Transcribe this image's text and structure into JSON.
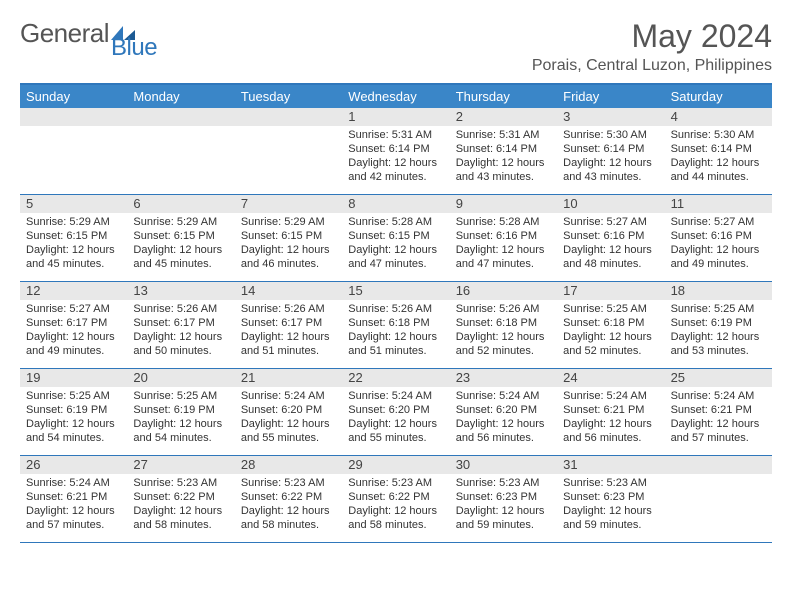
{
  "brand": {
    "name1": "General",
    "name2": "Blue"
  },
  "title": "May 2024",
  "location": "Porais, Central Luzon, Philippines",
  "accent_color": "#3a86c8",
  "border_color": "#2f77bb",
  "daynum_bg": "#e8e8e8",
  "weekdays": [
    "Sunday",
    "Monday",
    "Tuesday",
    "Wednesday",
    "Thursday",
    "Friday",
    "Saturday"
  ],
  "weeks": [
    [
      {
        "n": "",
        "sr": "",
        "ss": "",
        "dl": ""
      },
      {
        "n": "",
        "sr": "",
        "ss": "",
        "dl": ""
      },
      {
        "n": "",
        "sr": "",
        "ss": "",
        "dl": ""
      },
      {
        "n": "1",
        "sr": "Sunrise: 5:31 AM",
        "ss": "Sunset: 6:14 PM",
        "dl": "Daylight: 12 hours and 42 minutes."
      },
      {
        "n": "2",
        "sr": "Sunrise: 5:31 AM",
        "ss": "Sunset: 6:14 PM",
        "dl": "Daylight: 12 hours and 43 minutes."
      },
      {
        "n": "3",
        "sr": "Sunrise: 5:30 AM",
        "ss": "Sunset: 6:14 PM",
        "dl": "Daylight: 12 hours and 43 minutes."
      },
      {
        "n": "4",
        "sr": "Sunrise: 5:30 AM",
        "ss": "Sunset: 6:14 PM",
        "dl": "Daylight: 12 hours and 44 minutes."
      }
    ],
    [
      {
        "n": "5",
        "sr": "Sunrise: 5:29 AM",
        "ss": "Sunset: 6:15 PM",
        "dl": "Daylight: 12 hours and 45 minutes."
      },
      {
        "n": "6",
        "sr": "Sunrise: 5:29 AM",
        "ss": "Sunset: 6:15 PM",
        "dl": "Daylight: 12 hours and 45 minutes."
      },
      {
        "n": "7",
        "sr": "Sunrise: 5:29 AM",
        "ss": "Sunset: 6:15 PM",
        "dl": "Daylight: 12 hours and 46 minutes."
      },
      {
        "n": "8",
        "sr": "Sunrise: 5:28 AM",
        "ss": "Sunset: 6:15 PM",
        "dl": "Daylight: 12 hours and 47 minutes."
      },
      {
        "n": "9",
        "sr": "Sunrise: 5:28 AM",
        "ss": "Sunset: 6:16 PM",
        "dl": "Daylight: 12 hours and 47 minutes."
      },
      {
        "n": "10",
        "sr": "Sunrise: 5:27 AM",
        "ss": "Sunset: 6:16 PM",
        "dl": "Daylight: 12 hours and 48 minutes."
      },
      {
        "n": "11",
        "sr": "Sunrise: 5:27 AM",
        "ss": "Sunset: 6:16 PM",
        "dl": "Daylight: 12 hours and 49 minutes."
      }
    ],
    [
      {
        "n": "12",
        "sr": "Sunrise: 5:27 AM",
        "ss": "Sunset: 6:17 PM",
        "dl": "Daylight: 12 hours and 49 minutes."
      },
      {
        "n": "13",
        "sr": "Sunrise: 5:26 AM",
        "ss": "Sunset: 6:17 PM",
        "dl": "Daylight: 12 hours and 50 minutes."
      },
      {
        "n": "14",
        "sr": "Sunrise: 5:26 AM",
        "ss": "Sunset: 6:17 PM",
        "dl": "Daylight: 12 hours and 51 minutes."
      },
      {
        "n": "15",
        "sr": "Sunrise: 5:26 AM",
        "ss": "Sunset: 6:18 PM",
        "dl": "Daylight: 12 hours and 51 minutes."
      },
      {
        "n": "16",
        "sr": "Sunrise: 5:26 AM",
        "ss": "Sunset: 6:18 PM",
        "dl": "Daylight: 12 hours and 52 minutes."
      },
      {
        "n": "17",
        "sr": "Sunrise: 5:25 AM",
        "ss": "Sunset: 6:18 PM",
        "dl": "Daylight: 12 hours and 52 minutes."
      },
      {
        "n": "18",
        "sr": "Sunrise: 5:25 AM",
        "ss": "Sunset: 6:19 PM",
        "dl": "Daylight: 12 hours and 53 minutes."
      }
    ],
    [
      {
        "n": "19",
        "sr": "Sunrise: 5:25 AM",
        "ss": "Sunset: 6:19 PM",
        "dl": "Daylight: 12 hours and 54 minutes."
      },
      {
        "n": "20",
        "sr": "Sunrise: 5:25 AM",
        "ss": "Sunset: 6:19 PM",
        "dl": "Daylight: 12 hours and 54 minutes."
      },
      {
        "n": "21",
        "sr": "Sunrise: 5:24 AM",
        "ss": "Sunset: 6:20 PM",
        "dl": "Daylight: 12 hours and 55 minutes."
      },
      {
        "n": "22",
        "sr": "Sunrise: 5:24 AM",
        "ss": "Sunset: 6:20 PM",
        "dl": "Daylight: 12 hours and 55 minutes."
      },
      {
        "n": "23",
        "sr": "Sunrise: 5:24 AM",
        "ss": "Sunset: 6:20 PM",
        "dl": "Daylight: 12 hours and 56 minutes."
      },
      {
        "n": "24",
        "sr": "Sunrise: 5:24 AM",
        "ss": "Sunset: 6:21 PM",
        "dl": "Daylight: 12 hours and 56 minutes."
      },
      {
        "n": "25",
        "sr": "Sunrise: 5:24 AM",
        "ss": "Sunset: 6:21 PM",
        "dl": "Daylight: 12 hours and 57 minutes."
      }
    ],
    [
      {
        "n": "26",
        "sr": "Sunrise: 5:24 AM",
        "ss": "Sunset: 6:21 PM",
        "dl": "Daylight: 12 hours and 57 minutes."
      },
      {
        "n": "27",
        "sr": "Sunrise: 5:23 AM",
        "ss": "Sunset: 6:22 PM",
        "dl": "Daylight: 12 hours and 58 minutes."
      },
      {
        "n": "28",
        "sr": "Sunrise: 5:23 AM",
        "ss": "Sunset: 6:22 PM",
        "dl": "Daylight: 12 hours and 58 minutes."
      },
      {
        "n": "29",
        "sr": "Sunrise: 5:23 AM",
        "ss": "Sunset: 6:22 PM",
        "dl": "Daylight: 12 hours and 58 minutes."
      },
      {
        "n": "30",
        "sr": "Sunrise: 5:23 AM",
        "ss": "Sunset: 6:23 PM",
        "dl": "Daylight: 12 hours and 59 minutes."
      },
      {
        "n": "31",
        "sr": "Sunrise: 5:23 AM",
        "ss": "Sunset: 6:23 PM",
        "dl": "Daylight: 12 hours and 59 minutes."
      },
      {
        "n": "",
        "sr": "",
        "ss": "",
        "dl": ""
      }
    ]
  ]
}
